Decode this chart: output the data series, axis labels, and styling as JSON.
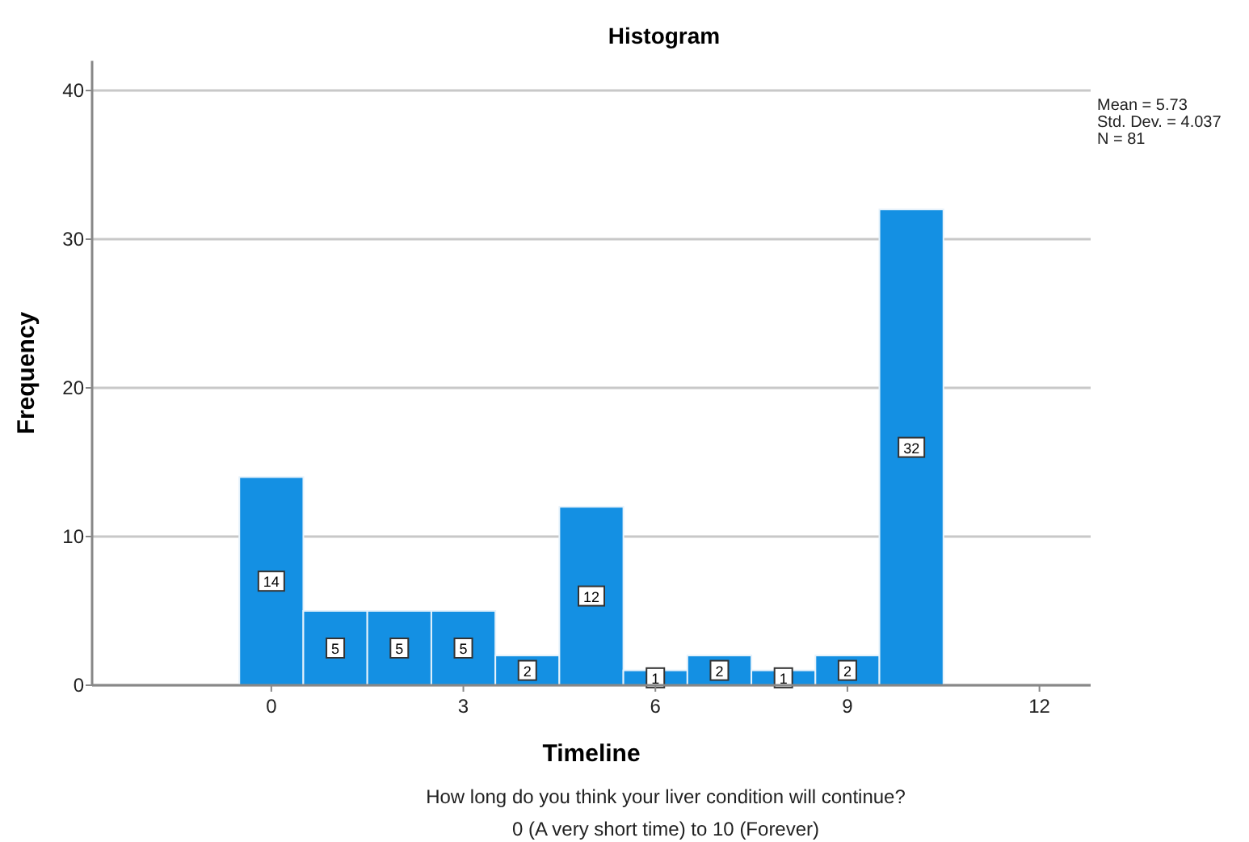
{
  "chart_data": {
    "type": "histogram",
    "title": "Histogram",
    "xlabel": "Timeline",
    "ylabel": "Frequency",
    "bins": [
      -0.5,
      0.5,
      1.5,
      2.5,
      3.5,
      4.5,
      5.5,
      6.5,
      7.5,
      8.5,
      9.5,
      10.5
    ],
    "values": [
      14,
      5,
      5,
      5,
      2,
      12,
      1,
      2,
      1,
      2,
      32
    ],
    "color": "#1490e3",
    "data_labels": true,
    "grid": "y",
    "xlim": [
      -2.8,
      12.8
    ],
    "xticks": [
      0,
      3,
      6,
      9,
      12
    ],
    "ylim": [
      0,
      42
    ],
    "yticks": [
      0,
      10,
      20,
      30,
      40
    ],
    "annotations": [
      "Mean = 5.73",
      "Std. Dev. = 4.037",
      "N = 81",
      "How long do you think your liver condition will continue?",
      "0 (A very short time) to 10 (Forever)"
    ]
  }
}
